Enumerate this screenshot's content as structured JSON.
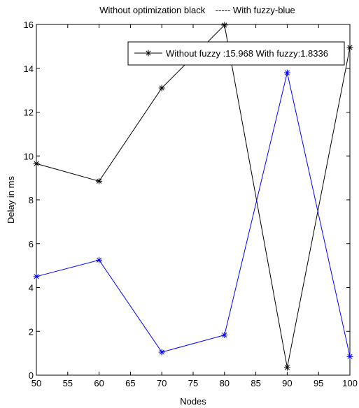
{
  "chart_data": {
    "type": "line",
    "title": "Without optimization black    ----- With fuzzy-blue",
    "xlabel": "Nodes",
    "ylabel": "Delay in ms",
    "xlim": [
      50,
      100
    ],
    "ylim": [
      0,
      16
    ],
    "xticks": [
      50,
      55,
      60,
      65,
      70,
      75,
      80,
      85,
      90,
      95,
      100
    ],
    "yticks": [
      0,
      2,
      4,
      6,
      8,
      10,
      12,
      14,
      16
    ],
    "grid": false,
    "legend": {
      "placement": "top-right",
      "label": "Without fuzzy :15.968 With fuzzy:1.8336"
    },
    "x": [
      50,
      60,
      70,
      80,
      90,
      100
    ],
    "series": [
      {
        "color": "#000000",
        "marker": "asterisk",
        "values": [
          9.65,
          8.85,
          13.1,
          15.97,
          0.35,
          14.95
        ]
      },
      {
        "color": "#0000ff",
        "marker": "asterisk",
        "values": [
          4.5,
          5.25,
          1.05,
          1.83,
          13.8,
          0.85
        ]
      }
    ]
  }
}
